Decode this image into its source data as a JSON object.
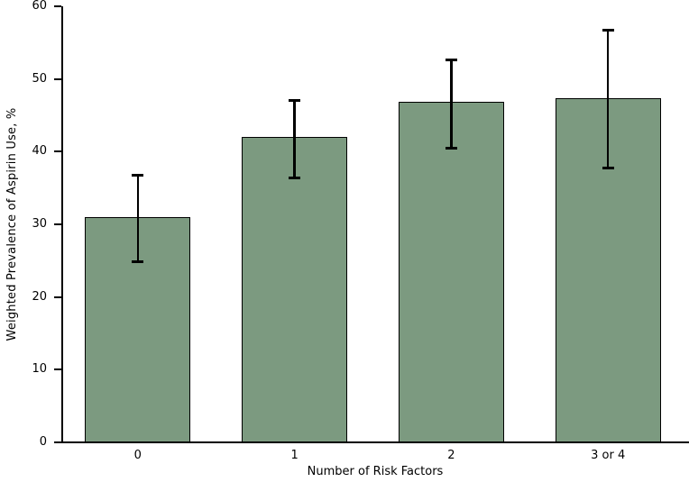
{
  "figure": {
    "background_color": "#ffffff",
    "text_color": "#000000"
  },
  "chart_data": {
    "type": "bar",
    "title": "",
    "xlabel": "Number of Risk Factors",
    "ylabel": "Weighted Prevalence of Aspirin Use, %",
    "categories": [
      "0",
      "1",
      "2",
      "3 or 4"
    ],
    "values": [
      31.0,
      42.0,
      46.8,
      47.3
    ],
    "error_low": [
      24.9,
      36.4,
      40.5,
      37.7
    ],
    "error_high": [
      36.8,
      47.1,
      52.6,
      56.7
    ],
    "ylim": [
      0,
      60
    ],
    "yticks": [
      0,
      10,
      20,
      30,
      40,
      50,
      60
    ],
    "grid": false,
    "legend": "none",
    "bar_color": "#7c9a80",
    "bar_border_color": "#000000",
    "error_bar_color": "#000000",
    "axis_color": "#000000"
  }
}
